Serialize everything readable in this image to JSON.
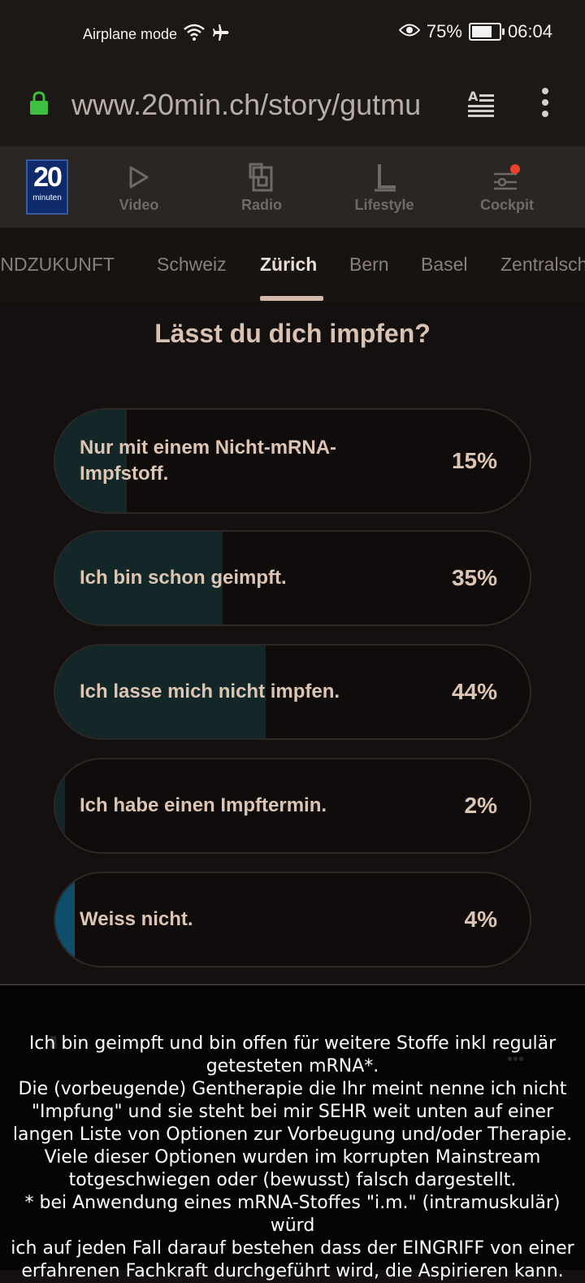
{
  "status_bar": {
    "airplane_label": "Airplane mode",
    "battery": "75%",
    "battery_level": 0.75,
    "time": "06:04"
  },
  "url_bar": {
    "url": "www.20min.ch/story/gutmu"
  },
  "app_nav": {
    "logo_number": "20",
    "logo_word": "minuten",
    "items": [
      {
        "label": "Video",
        "icon": "play-icon"
      },
      {
        "label": "Radio",
        "icon": "radio-icon"
      },
      {
        "label": "Lifestyle",
        "icon": "lifestyle-icon"
      },
      {
        "label": "Cockpit",
        "icon": "sliders-icon"
      }
    ]
  },
  "tabs": {
    "items": [
      "INDZUKUNFT",
      "Schweiz",
      "Zürich",
      "Bern",
      "Basel",
      "Zentralschweiz"
    ],
    "active": "Zürich"
  },
  "poll": {
    "question": "Lässt du dich impfen?",
    "options": [
      {
        "label": "Nur mit einem Nicht-mRNA-Impfstoff.",
        "percent": "15%",
        "value": 15
      },
      {
        "label": "Ich bin schon geimpft.",
        "percent": "35%",
        "value": 35
      },
      {
        "label": "Ich lasse mich nicht impfen.",
        "percent": "44%",
        "value": 44
      },
      {
        "label": "Ich habe einen Impftermin.",
        "percent": "2%",
        "value": 2
      },
      {
        "label": "Weiss nicht.",
        "percent": "4%",
        "value": 4
      }
    ]
  },
  "colors": {
    "accent": "#0d4f6b",
    "bar": "#132628",
    "text": "#dcc5b3"
  },
  "comment": {
    "lines": [
      "Ich bin geimpft und bin offen für weitere Stoffe inkl regulär",
      "getesteten mRNA*.",
      "Die (vorbeugende) Gentherapie die Ihr meint nenne ich nicht",
      "\"Impfung\" und sie steht bei mir SEHR weit unten auf einer",
      "langen Liste von Optionen zur Vorbeugung und/oder Therapie.",
      "Viele dieser Optionen wurden im korrupten Mainstream",
      "totgeschwiegen oder (bewusst) falsch dargestellt.",
      "* bei Anwendung eines mRNA-Stoffes \"i.m.\" (intramuskulär) würd",
      "ich auf jeden Fall darauf bestehen dass der EINGRIFF von einer",
      "erfahrenen Fachkraft durchgeführt wird, die Aspirieren kann."
    ]
  }
}
